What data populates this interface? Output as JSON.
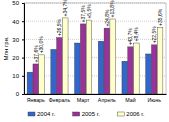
{
  "chart_data": {
    "type": "bar",
    "y_label": "Млн грн.",
    "categories": [
      "Январь",
      "Февраль",
      "Март",
      "Апрель",
      "Май",
      "Июнь"
    ],
    "series": [
      {
        "name": "2004 г.",
        "color": "#3366cc",
        "values": [
          12,
          24.5,
          28,
          29,
          18,
          22
        ]
      },
      {
        "name": "2005 г.",
        "color": "#993399",
        "values": [
          16.5,
          31,
          38.5,
          36.2,
          25.9,
          27
        ]
      },
      {
        "name": "2006 г.",
        "color": "#ffffcc",
        "values": [
          21.5,
          41.8,
          40.6,
          41.2,
          28,
          36.6
        ]
      }
    ],
    "annotations": [
      {
        "text": "+37,6%",
        "category": "Январь",
        "series": "2005 г."
      },
      {
        "text": "+30,0%",
        "category": "Январь",
        "series": "2006 г."
      },
      {
        "text": "+26,5%",
        "category": "Февраль",
        "series": "2005 г."
      },
      {
        "text": "+34,7%",
        "category": "Февраль",
        "series": "2006 г."
      },
      {
        "text": "+37,5%",
        "category": "Март",
        "series": "2005 г."
      },
      {
        "text": "+5,5%",
        "category": "Март",
        "series": "2006 г."
      },
      {
        "text": "+24,8%",
        "category": "Апрель",
        "series": "2005 г."
      },
      {
        "text": "+13,8%",
        "category": "Апрель",
        "series": "2006 г."
      },
      {
        "text": "+43,7%",
        "category": "Май",
        "series": "2005 г."
      },
      {
        "text": "+8,4%",
        "category": "Май",
        "series": "2006 г."
      },
      {
        "text": "+22,5%",
        "category": "Июнь",
        "series": "2005 г."
      },
      {
        "text": "+35,6%",
        "category": "Июнь",
        "series": "2006 г."
      }
    ],
    "ylim": [
      0,
      50
    ],
    "yticks": [
      0,
      10,
      20,
      30,
      40,
      50
    ],
    "grid": true,
    "legend": "bottom"
  }
}
